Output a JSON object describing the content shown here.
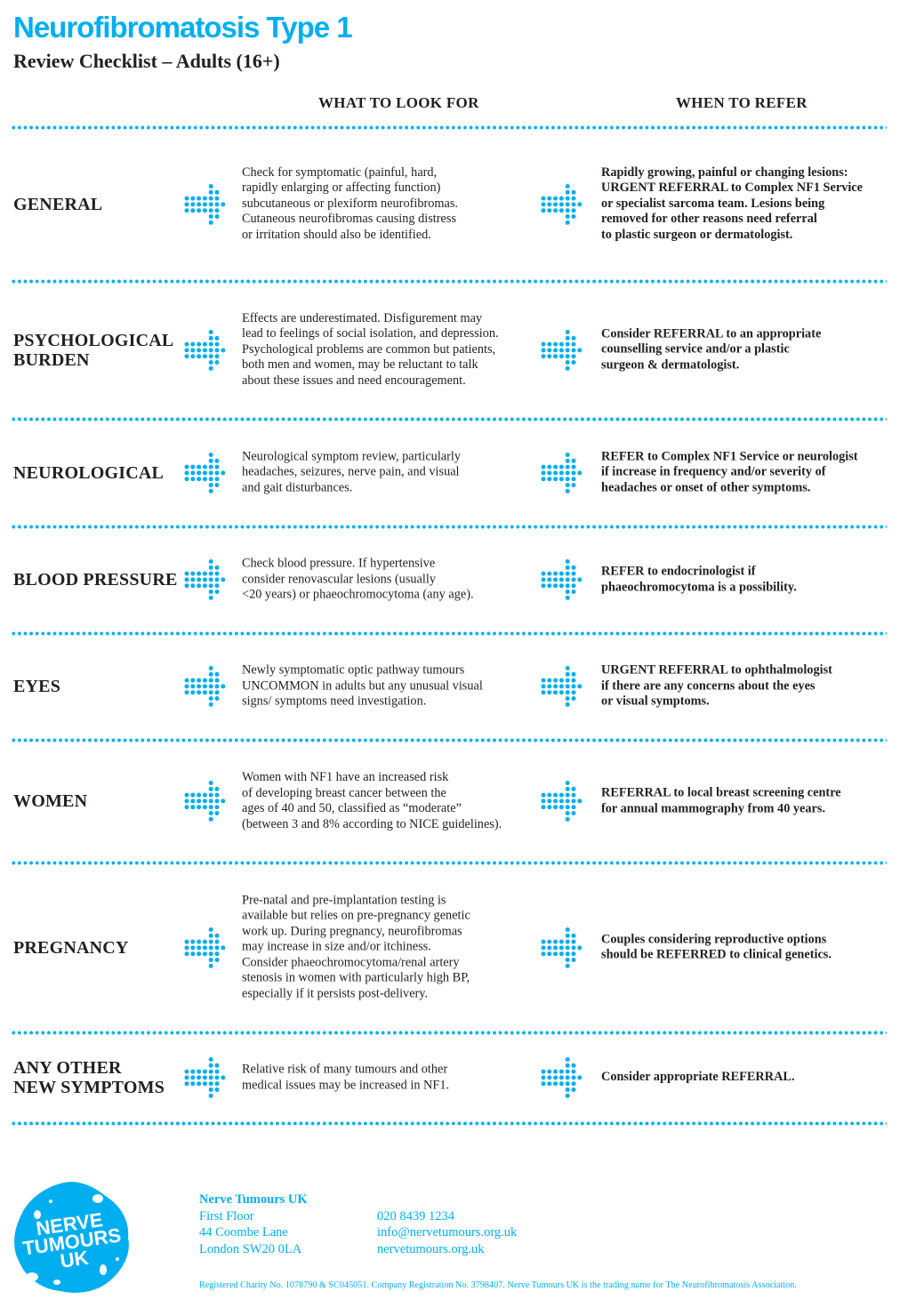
{
  "header": {
    "title": "Neurofibromatosis Type 1",
    "subtitle": "Review Checklist – Adults (16+)"
  },
  "columns": {
    "look_for": "WHAT TO LOOK FOR",
    "refer": "WHEN TO REFER"
  },
  "icons": {
    "row_arrow": "dotted-arrow-right-icon"
  },
  "colors": {
    "accent": "#00aeef",
    "text": "#231f20"
  },
  "rows": [
    {
      "label": "GENERAL",
      "look": "Check for symptomatic (painful, hard,\nrapidly enlarging or affecting function)\nsubcutaneous or plexiform neurofibromas.\nCutaneous neurofibromas causing distress\nor irritation should also be identified.",
      "refer": "Rapidly growing, painful or changing lesions:\nURGENT REFERRAL to Complex NF1 Service\nor specialist sarcoma team. Lesions being\nremoved for other reasons need referral\nto plastic surgeon or dermatologist."
    },
    {
      "label": "PSYCHOLOGICAL\nBURDEN",
      "look": "Effects are underestimated. Disfigurement may\nlead to feelings of social isolation, and depression.\nPsychological problems are common but patients,\nboth men and women, may be reluctant to talk\nabout these issues and need encouragement.",
      "refer": "Consider REFERRAL to an appropriate\ncounselling service and/or a plastic\nsurgeon & dermatologist."
    },
    {
      "label": "NEUROLOGICAL",
      "look": "Neurological symptom review, particularly\nheadaches, seizures, nerve pain, and visual\nand gait disturbances.",
      "refer": "REFER to Complex NF1 Service or neurologist\nif increase in frequency and/or severity of\nheadaches or onset of other symptoms."
    },
    {
      "label": "BLOOD PRESSURE",
      "look": "Check blood pressure. If hypertensive\nconsider renovascular lesions (usually\n<20 years) or phaeochromocytoma (any age).",
      "refer": "REFER to endocrinologist if\nphaeochromocytoma is a possibility."
    },
    {
      "label": "EYES",
      "look": "Newly symptomatic optic pathway tumours\nUNCOMMON in adults but any unusual visual\nsigns/ symptoms need investigation.",
      "refer": "URGENT REFERRAL to ophthalmologist\nif there are any concerns about the eyes\nor visual symptoms."
    },
    {
      "label": "WOMEN",
      "look": "Women with NF1 have an increased risk\nof developing breast cancer between the\nages of 40 and 50, classified as “moderate”\n(between 3 and 8% according to NICE guidelines).",
      "refer": "REFERRAL to local breast screening centre\nfor annual mammography from 40 years."
    },
    {
      "label": "PREGNANCY",
      "look": "Pre-natal and pre-implantation testing is\navailable but relies on pre-pregnancy genetic\nwork up. During pregnancy, neurofibromas\nmay increase in size and/or itchiness.\nConsider phaeochromocytoma/renal artery\nstenosis in women with particularly high BP,\nespecially if it persists post-delivery.",
      "refer": "Couples considering reproductive options\nshould be REFERRED to clinical genetics."
    },
    {
      "label": "ANY OTHER\nNEW SYMPTOMS",
      "look": "Relative risk of many tumours and other\nmedical issues may be increased in NF1.",
      "refer": "Consider appropriate REFERRAL."
    }
  ],
  "footer": {
    "logo_text": "NERVE TUMOURS UK",
    "org": "Nerve Tumours UK",
    "address": [
      "First Floor",
      "44 Coombe Lane",
      "London SW20 0LA"
    ],
    "phone": "020 8439 1234",
    "email": "info@nervetumours.org.uk",
    "website": "nervetumours.org.uk",
    "legal": "Registered Charity No. 1078790 & SC045051. Company Registration No. 3798407. Nerve Tumours UK is the trading name for The Neurofibromatosis Association."
  }
}
